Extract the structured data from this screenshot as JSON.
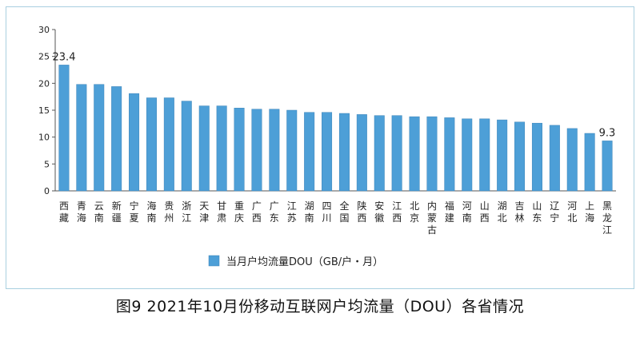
{
  "figure": {
    "caption": "图9   2021年10月份移动互联网户均流量（DOU）各省情况"
  },
  "chart_data": {
    "type": "bar",
    "categories": [
      "西藏",
      "青海",
      "云南",
      "新疆",
      "宁夏",
      "海南",
      "贵州",
      "浙江",
      "天津",
      "甘肃",
      "重庆",
      "广西",
      "广东",
      "江苏",
      "湖南",
      "四川",
      "全国",
      "陕西",
      "安徽",
      "江西",
      "北京",
      "内蒙古",
      "福建",
      "河南",
      "山西",
      "湖北",
      "吉林",
      "山东",
      "辽宁",
      "河北",
      "上海",
      "黑龙江"
    ],
    "series": [
      {
        "name": "当月户均流量DOU（GB/户・月）",
        "values": [
          23.4,
          19.8,
          19.8,
          19.4,
          18.1,
          17.3,
          17.3,
          16.7,
          15.8,
          15.8,
          15.4,
          15.2,
          15.2,
          15.0,
          14.6,
          14.6,
          14.4,
          14.2,
          14.0,
          14.0,
          13.8,
          13.8,
          13.6,
          13.4,
          13.4,
          13.2,
          12.8,
          12.6,
          12.2,
          11.6,
          10.7,
          9.3
        ]
      }
    ],
    "data_labels": {
      "西藏": "23.4",
      "黑龙江": "9.3"
    },
    "ylim": [
      0,
      30
    ],
    "yticks": [
      "0",
      "5",
      "10",
      "15",
      "20",
      "25",
      "30"
    ],
    "grid": false,
    "legend_position": "bottom",
    "colors": {
      "bar": "#4d9fd7",
      "bar_edge": "#3d84b8",
      "axis": "#555555",
      "frame": "#a9cfe0"
    }
  }
}
